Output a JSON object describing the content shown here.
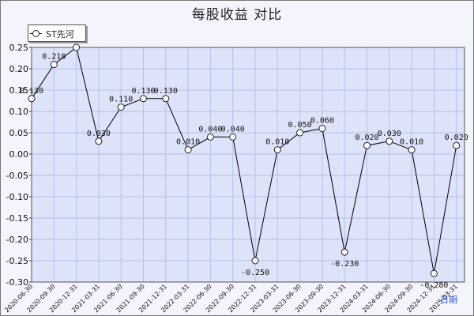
{
  "chart_data": {
    "type": "line",
    "title": "每股收益  对比",
    "xlabel": "日期",
    "ylabel": "",
    "ylim": [
      -0.3,
      0.25
    ],
    "yticks": [
      "0.25",
      "0.20",
      "0.15",
      "0.10",
      "0.05",
      "0.00",
      "-0.05",
      "-0.10",
      "-0.15",
      "-0.20",
      "-0.25",
      "-0.30"
    ],
    "grid": true,
    "legend_position": "top-left",
    "categories": [
      "2020-06-30",
      "2020-09-30",
      "2020-12-31",
      "2021-03-31",
      "2021-06-30",
      "2021-09-30",
      "2021-12-31",
      "2022-03-31",
      "2022-06-30",
      "2022-09-30",
      "2022-12-31",
      "2023-03-31",
      "2023-06-30",
      "2023-09-30",
      "2023-12-31",
      "2024-03-31",
      "2024-06-30",
      "2024-09-30",
      "2024-12-31",
      "2025-03-31"
    ],
    "series": [
      {
        "name": "ST先河",
        "values": [
          0.13,
          0.21,
          0.25,
          0.03,
          0.11,
          0.13,
          0.13,
          0.01,
          0.04,
          0.04,
          -0.25,
          0.01,
          0.05,
          0.06,
          -0.23,
          0.02,
          0.03,
          0.01,
          -0.28,
          0.02
        ],
        "labels": [
          "0.130",
          "0.210",
          "",
          "0.030",
          "0.110",
          "0.130",
          "0.130",
          "0.010",
          "0.040",
          "0.040",
          "-0.250",
          "0.010",
          "0.050",
          "0.060",
          "-0.230",
          "0.020",
          "0.030",
          "0.010",
          "-0.280",
          "0.020"
        ]
      }
    ],
    "colors": {
      "plot_bg": "#dde3f8",
      "grid": "#b8c2e8",
      "line": "#000000",
      "frame_bg": "#f4f4fc"
    }
  }
}
